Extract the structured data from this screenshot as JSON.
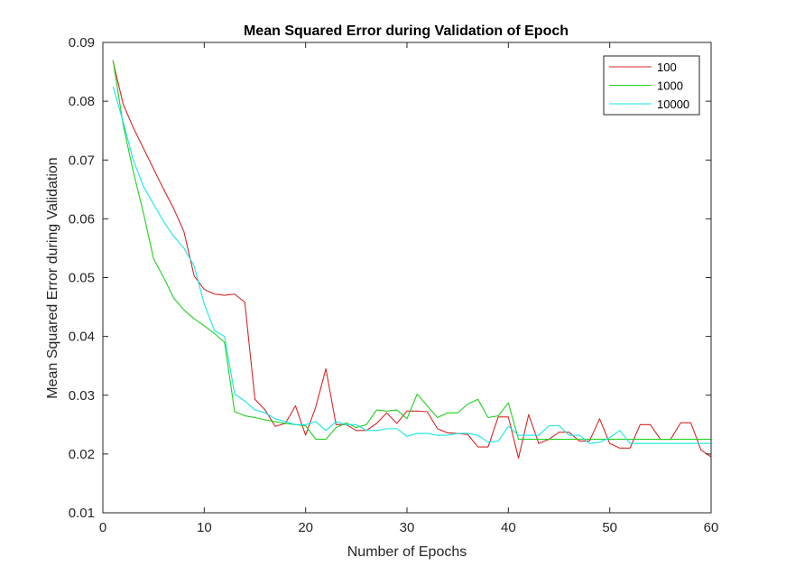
{
  "chart_data": {
    "type": "line",
    "title": "Mean Squared Error during Validation of Epoch",
    "xlabel": "Number of Epochs",
    "ylabel": "Mean Squared Error during Validation",
    "xlim": [
      0,
      60
    ],
    "ylim": [
      0.01,
      0.09
    ],
    "xticks": [
      "0",
      "10",
      "20",
      "30",
      "40",
      "50",
      "60"
    ],
    "yticks": [
      "0.01",
      "0.02",
      "0.03",
      "0.04",
      "0.05",
      "0.06",
      "0.07",
      "0.08",
      "0.09"
    ],
    "grid": false,
    "legend_position": "top-right",
    "x": [
      1,
      2,
      3,
      4,
      5,
      6,
      7,
      8,
      9,
      10,
      11,
      12,
      13,
      14,
      15,
      16,
      17,
      18,
      19,
      20,
      21,
      22,
      23,
      24,
      25,
      26,
      27,
      28,
      29,
      30,
      31,
      32,
      33,
      34,
      35,
      36,
      37,
      38,
      39,
      40,
      41,
      42,
      43,
      44,
      45,
      46,
      47,
      48,
      49,
      50,
      51,
      52,
      53,
      54,
      55,
      56,
      57,
      58,
      59,
      60
    ],
    "series": [
      {
        "name": "100",
        "color": "#d62728",
        "values": [
          0.0868,
          0.0795,
          0.0755,
          0.072,
          0.0685,
          0.065,
          0.0617,
          0.0578,
          0.0503,
          0.048,
          0.0472,
          0.047,
          0.0472,
          0.0458,
          0.0293,
          0.0275,
          0.0247,
          0.0252,
          0.0282,
          0.0232,
          0.028,
          0.0345,
          0.025,
          0.025,
          0.024,
          0.024,
          0.0252,
          0.027,
          0.0252,
          0.0273,
          0.0273,
          0.0272,
          0.0243,
          0.0236,
          0.0235,
          0.0233,
          0.0212,
          0.0212,
          0.0263,
          0.0263,
          0.0193,
          0.0267,
          0.0218,
          0.0225,
          0.0237,
          0.0237,
          0.0222,
          0.0222,
          0.026,
          0.0218,
          0.021,
          0.021,
          0.025,
          0.025,
          0.0225,
          0.0225,
          0.0253,
          0.0253,
          0.0207,
          0.0195
        ]
      },
      {
        "name": "1000",
        "color": "#1fd11f",
        "values": [
          0.087,
          0.076,
          0.068,
          0.061,
          0.0532,
          0.05,
          0.0465,
          0.0445,
          0.043,
          0.0418,
          0.0405,
          0.039,
          0.0272,
          0.0265,
          0.0262,
          0.0258,
          0.0255,
          0.0252,
          0.025,
          0.0248,
          0.0225,
          0.0225,
          0.0245,
          0.0253,
          0.0245,
          0.025,
          0.0275,
          0.0273,
          0.0275,
          0.026,
          0.0302,
          0.0282,
          0.0262,
          0.027,
          0.027,
          0.0285,
          0.0293,
          0.0262,
          0.0265,
          0.0287,
          0.0225,
          0.0225,
          0.0225,
          0.0225,
          0.0225,
          0.0225,
          0.0225,
          0.0225,
          0.0225,
          0.0225,
          0.0225,
          0.0225,
          0.0225,
          0.0225,
          0.0225,
          0.0225,
          0.0225,
          0.0225,
          0.0225,
          0.0225
        ]
      },
      {
        "name": "10000",
        "color": "#17e6e6",
        "values": [
          0.0825,
          0.0765,
          0.07,
          0.0655,
          0.0625,
          0.0595,
          0.057,
          0.055,
          0.052,
          0.0455,
          0.041,
          0.04,
          0.0302,
          0.029,
          0.0275,
          0.027,
          0.026,
          0.0255,
          0.025,
          0.025,
          0.0255,
          0.024,
          0.0255,
          0.025,
          0.025,
          0.024,
          0.024,
          0.0243,
          0.0243,
          0.023,
          0.0235,
          0.0235,
          0.0232,
          0.0232,
          0.0235,
          0.0235,
          0.0232,
          0.022,
          0.0222,
          0.0247,
          0.0232,
          0.0232,
          0.0232,
          0.0248,
          0.0248,
          0.0232,
          0.0232,
          0.0218,
          0.022,
          0.0228,
          0.024,
          0.0218,
          0.0218,
          0.0218,
          0.0218,
          0.0218,
          0.0218,
          0.0218,
          0.0218,
          0.0218
        ]
      }
    ]
  }
}
